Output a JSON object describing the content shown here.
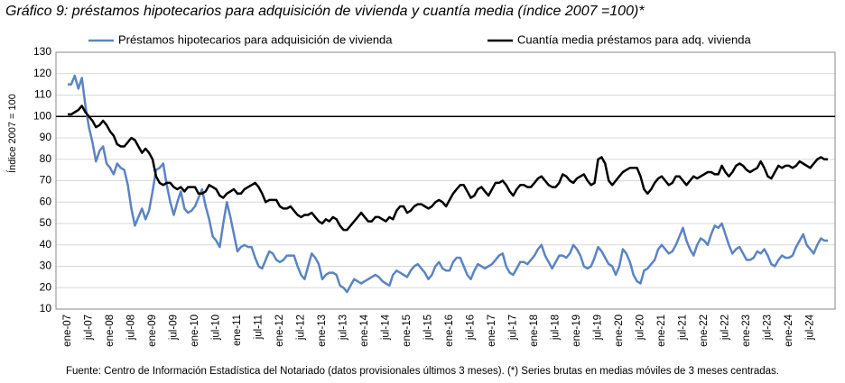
{
  "chart_data": {
    "type": "line",
    "title": "Gráfico 9: préstamos hipotecarios para adquisición de vivienda y cuantía media (índice 2007 =100)*",
    "y_label": "Índice 2007 = 100",
    "source": "Fuente: Centro de Información Estadística del Notariado (datos provisionales últimos 3 meses). (*) Series brutas en medias móviles de 3 meses centradas.",
    "legend": "top",
    "grid": true,
    "reference_line": 100,
    "ylim": [
      10,
      130
    ],
    "yticks": [
      10,
      20,
      30,
      40,
      50,
      60,
      70,
      80,
      90,
      100,
      110,
      120,
      130
    ],
    "categories": [
      "ene-07",
      null,
      null,
      null,
      null,
      null,
      "jul-07",
      null,
      null,
      null,
      null,
      null,
      "ene-08",
      null,
      null,
      null,
      null,
      null,
      "jul-08",
      null,
      null,
      null,
      null,
      null,
      "ene-09",
      null,
      null,
      null,
      null,
      null,
      "jul-09",
      null,
      null,
      null,
      null,
      null,
      "ene-10",
      null,
      null,
      null,
      null,
      null,
      "jul-10",
      null,
      null,
      null,
      null,
      null,
      "ene-11",
      null,
      null,
      null,
      null,
      null,
      "jul-11",
      null,
      null,
      null,
      null,
      null,
      "ene-12",
      null,
      null,
      null,
      null,
      null,
      "jul-12",
      null,
      null,
      null,
      null,
      null,
      "ene-13",
      null,
      null,
      null,
      null,
      null,
      "jul-13",
      null,
      null,
      null,
      null,
      null,
      "ene-14",
      null,
      null,
      null,
      null,
      null,
      "jul-14",
      null,
      null,
      null,
      null,
      null,
      "ene-15",
      null,
      null,
      null,
      null,
      null,
      "jul-15",
      null,
      null,
      null,
      null,
      null,
      "ene-16",
      null,
      null,
      null,
      null,
      null,
      "jul-16",
      null,
      null,
      null,
      null,
      null,
      "ene-17",
      null,
      null,
      null,
      null,
      null,
      "jul-17",
      null,
      null,
      null,
      null,
      null,
      "ene-18",
      null,
      null,
      null,
      null,
      null,
      "jul-18",
      null,
      null,
      null,
      null,
      null,
      "ene-19",
      null,
      null,
      null,
      null,
      null,
      "jul-19",
      null,
      null,
      null,
      null,
      null,
      "ene-20",
      null,
      null,
      null,
      null,
      null,
      "jul-20",
      null,
      null,
      null,
      null,
      null,
      "ene-21",
      null,
      null,
      null,
      null,
      null,
      "jul-21",
      null,
      null,
      null,
      null,
      null,
      "ene-22",
      null,
      null,
      null,
      null,
      null,
      "jul-22",
      null,
      null,
      null,
      null,
      null,
      "ene-23",
      null,
      null,
      null,
      null,
      null,
      "jul-23",
      null,
      null,
      null,
      null,
      null,
      "ene-24",
      null,
      null,
      null,
      null,
      null,
      "jul-24",
      null,
      null,
      null,
      null,
      null
    ],
    "series": [
      {
        "name": "Préstamos hipotecarios para adquisición de vivienda",
        "color": "#5b84c4",
        "values": [
          115,
          115,
          119,
          113,
          118,
          105,
          95,
          88,
          79,
          84,
          86,
          78,
          76,
          73,
          78,
          76,
          75,
          68,
          57,
          49,
          53,
          57,
          52,
          56,
          65,
          75,
          76,
          78,
          68,
          60,
          54,
          60,
          65,
          57,
          55,
          56,
          58,
          62,
          66,
          58,
          52,
          44,
          42,
          39,
          50,
          60,
          53,
          45,
          37,
          39,
          40,
          39,
          39,
          34,
          30,
          29,
          33,
          37,
          36,
          33,
          32,
          33,
          35,
          35,
          35,
          30,
          26,
          24,
          30,
          36,
          34,
          31,
          24,
          26,
          27,
          27,
          26,
          21,
          20,
          18,
          21,
          24,
          23,
          22,
          23,
          24,
          25,
          26,
          25,
          23,
          22,
          21,
          26,
          28,
          27,
          26,
          25,
          28,
          30,
          31,
          29,
          27,
          24,
          26,
          30,
          32,
          29,
          28,
          28,
          32,
          34,
          34,
          30,
          26,
          24,
          28,
          31,
          30,
          29,
          30,
          31,
          33,
          35,
          36,
          30,
          27,
          26,
          29,
          32,
          32,
          31,
          33,
          35,
          38,
          40,
          35,
          32,
          29,
          32,
          35,
          35,
          34,
          36,
          40,
          38,
          35,
          30,
          29,
          30,
          34,
          39,
          37,
          34,
          31,
          30,
          26,
          30,
          38,
          36,
          32,
          26,
          23,
          22,
          28,
          29,
          31,
          33,
          38,
          40,
          38,
          36,
          37,
          40,
          44,
          48,
          42,
          38,
          35,
          40,
          43,
          42,
          40,
          45,
          49,
          48,
          50,
          45,
          40,
          36,
          38,
          39,
          36,
          33,
          33,
          34,
          37,
          36,
          38,
          35,
          31,
          30,
          33,
          35,
          34,
          34,
          35,
          39,
          42,
          45,
          40,
          38,
          36,
          40,
          43,
          42,
          42
        ]
      },
      {
        "name": "Cuantía media préstamos para adq. vivienda",
        "color": "#000000",
        "values": [
          101,
          101,
          102,
          103,
          105,
          102,
          100,
          98,
          95,
          96,
          98,
          96,
          93,
          91,
          87,
          86,
          86,
          88,
          90,
          89,
          86,
          83,
          85,
          83,
          80,
          72,
          69,
          68,
          69,
          69,
          67,
          66,
          67,
          65,
          67,
          67,
          67,
          64,
          64,
          65,
          68,
          67,
          66,
          63,
          62,
          64,
          65,
          66,
          64,
          64,
          66,
          67,
          68,
          69,
          67,
          64,
          60,
          61,
          61,
          61,
          58,
          57,
          57,
          58,
          56,
          54,
          53,
          54,
          54,
          55,
          53,
          51,
          50,
          52,
          51,
          53,
          52,
          49,
          47,
          47,
          49,
          51,
          53,
          55,
          53,
          51,
          51,
          53,
          53,
          52,
          51,
          53,
          52,
          56,
          58,
          58,
          55,
          56,
          58,
          59,
          59,
          58,
          57,
          58,
          60,
          61,
          60,
          58,
          61,
          64,
          66,
          68,
          68,
          65,
          62,
          63,
          66,
          67,
          65,
          63,
          66,
          69,
          69,
          70,
          68,
          65,
          63,
          66,
          68,
          68,
          67,
          67,
          69,
          71,
          72,
          70,
          68,
          67,
          67,
          69,
          73,
          72,
          70,
          69,
          71,
          72,
          73,
          70,
          68,
          69,
          80,
          81,
          78,
          70,
          68,
          70,
          72,
          74,
          75,
          76,
          76,
          76,
          72,
          66,
          64,
          66,
          69,
          71,
          72,
          70,
          68,
          69,
          72,
          72,
          70,
          68,
          70,
          72,
          71,
          72,
          73,
          74,
          74,
          73,
          73,
          77,
          74,
          72,
          74,
          77,
          78,
          77,
          75,
          74,
          75,
          76,
          79,
          76,
          72,
          71,
          74,
          77,
          76,
          77,
          77,
          76,
          77,
          79,
          78,
          77,
          76,
          78,
          80,
          81,
          80,
          80
        ]
      }
    ]
  }
}
